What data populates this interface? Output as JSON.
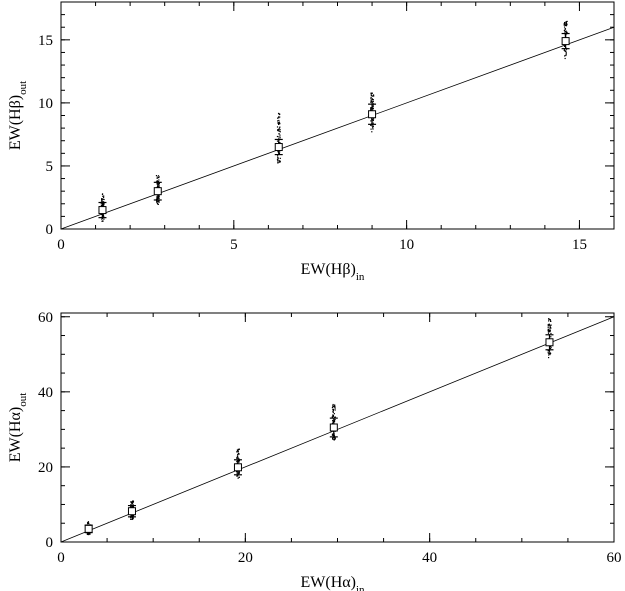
{
  "chart_data": [
    {
      "type": "scatter",
      "title": "",
      "xlabel": "EW(Hβ)",
      "xlabel_sub": "in",
      "ylabel": "EW(Hβ)",
      "ylabel_sub": "out",
      "xlim": [
        0,
        16
      ],
      "ylim": [
        0,
        18
      ],
      "xticks": [
        0,
        5,
        10,
        15
      ],
      "yticks": [
        0,
        5,
        10,
        15
      ],
      "x_minor_step": 1,
      "y_minor_step": 1,
      "grid": false,
      "reference_line": "y = x",
      "points": [
        {
          "x": 1.2,
          "y": 1.5,
          "err": 0.6,
          "cloud": [
            0.6,
            2.8
          ]
        },
        {
          "x": 2.8,
          "y": 3.0,
          "err": 0.7,
          "cloud": [
            1.9,
            4.3
          ]
        },
        {
          "x": 6.3,
          "y": 6.5,
          "err": 0.6,
          "cloud": [
            5.2,
            9.2
          ]
        },
        {
          "x": 9.0,
          "y": 9.1,
          "err": 0.8,
          "cloud": [
            7.7,
            10.9
          ]
        },
        {
          "x": 14.6,
          "y": 14.9,
          "err": 0.6,
          "cloud": [
            13.5,
            16.5
          ]
        }
      ]
    },
    {
      "type": "scatter",
      "title": "",
      "xlabel": "EW(Hα)",
      "xlabel_sub": "in",
      "ylabel": "EW(Hα)",
      "ylabel_sub": "out",
      "xlim": [
        0,
        60
      ],
      "ylim": [
        0,
        61
      ],
      "xticks": [
        0,
        20,
        40,
        60
      ],
      "yticks": [
        0,
        20,
        40,
        60
      ],
      "x_minor_step": 5,
      "y_minor_step": 5,
      "grid": false,
      "reference_line": "y = x",
      "points": [
        {
          "x": 3.0,
          "y": 3.5,
          "err": 1.0,
          "cloud": [
            2.0,
            5.5
          ]
        },
        {
          "x": 7.7,
          "y": 8.2,
          "err": 1.5,
          "cloud": [
            6.0,
            11.0
          ]
        },
        {
          "x": 19.2,
          "y": 19.9,
          "err": 2.0,
          "cloud": [
            17.0,
            25.0
          ]
        },
        {
          "x": 29.6,
          "y": 30.5,
          "err": 2.5,
          "cloud": [
            27.0,
            37.0
          ]
        },
        {
          "x": 53.0,
          "y": 53.2,
          "err": 2.0,
          "cloud": [
            49.0,
            59.5
          ]
        }
      ]
    }
  ]
}
